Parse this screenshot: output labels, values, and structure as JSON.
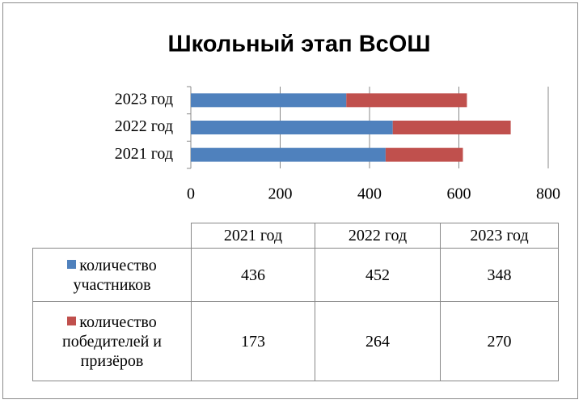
{
  "chart_data": {
    "type": "bar",
    "orientation": "horizontal",
    "stacked": true,
    "title": "Школьный этап ВсОШ",
    "categories": [
      "2021 год",
      "2022 год",
      "2023 год"
    ],
    "series": [
      {
        "name": "количество участников",
        "color": "#4f81bd",
        "values": [
          436,
          452,
          348
        ]
      },
      {
        "name": "количество победителей и призёров",
        "color": "#c0504d",
        "values": [
          173,
          264,
          270
        ]
      }
    ],
    "xlim": [
      0,
      800
    ],
    "xticks": [
      0,
      200,
      400,
      600,
      800
    ],
    "grid": true,
    "data_table": true
  }
}
